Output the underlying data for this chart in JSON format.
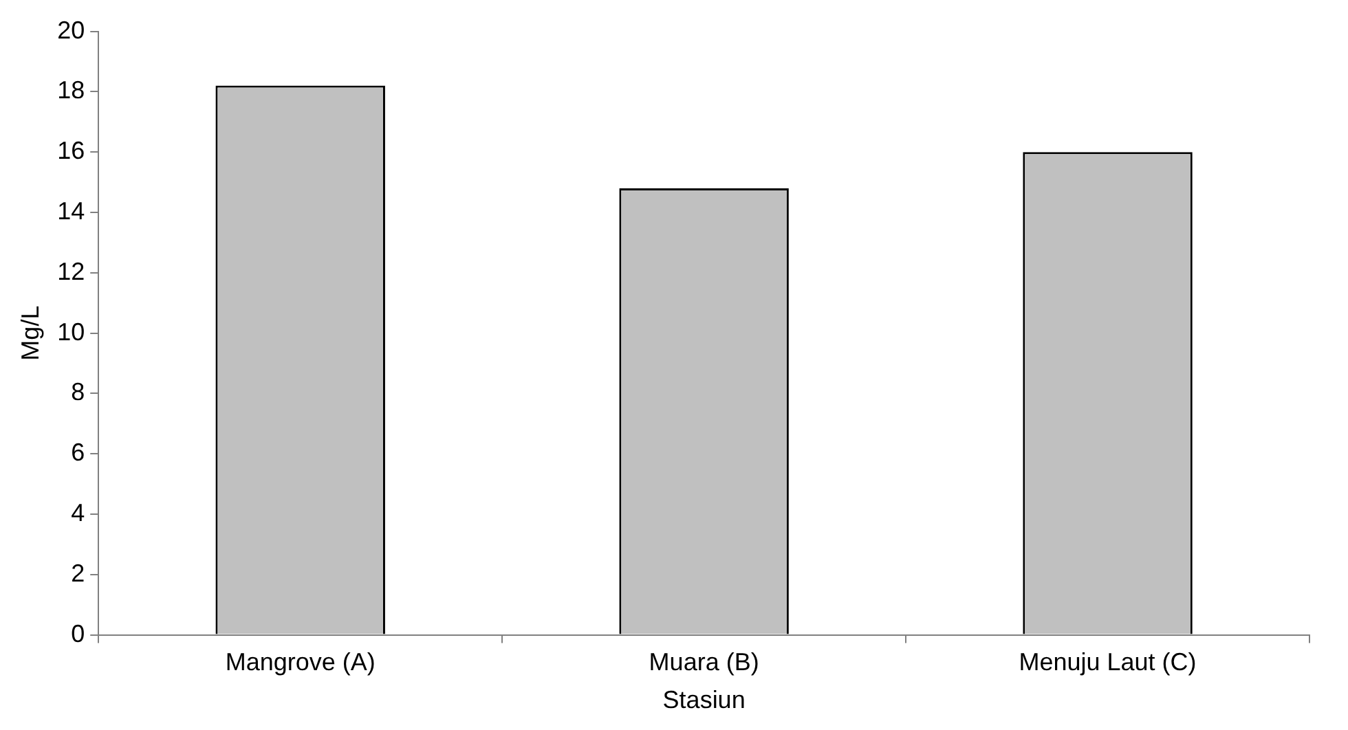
{
  "chart_data": {
    "type": "bar",
    "xlabel": "Stasiun",
    "ylabel": "Mg/L",
    "categories": [
      "Mangrove (A)",
      "Muara (B)",
      "Menuju Laut (C)"
    ],
    "values": [
      18.2,
      14.8,
      16.0
    ],
    "color": "#c0c0c0",
    "ylim": [
      0,
      20
    ],
    "yticks": [
      0,
      2,
      4,
      6,
      8,
      10,
      12,
      14,
      16,
      18,
      20
    ],
    "grid": false,
    "legend": false
  }
}
